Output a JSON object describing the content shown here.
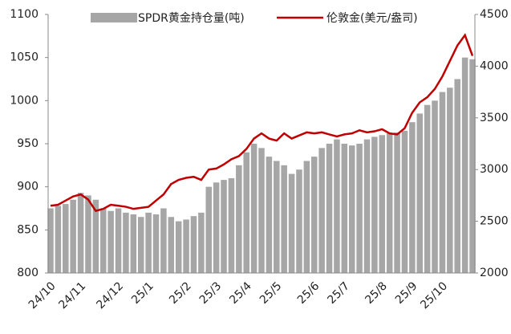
{
  "chart_data": {
    "type": "bar_line",
    "categories": [
      "24/10",
      null,
      null,
      null,
      "24/11",
      null,
      null,
      null,
      null,
      "24/12",
      null,
      null,
      null,
      "25/1",
      null,
      null,
      null,
      null,
      "25/2",
      null,
      null,
      null,
      "25/3",
      null,
      null,
      null,
      "25/4",
      null,
      null,
      null,
      "25/5",
      null,
      null,
      null,
      null,
      "25/6",
      null,
      null,
      null,
      "25/7",
      null,
      null,
      null,
      null,
      "25/8",
      null,
      null,
      null,
      "25/9",
      null,
      null,
      null,
      "25/10",
      null,
      null,
      null,
      null
    ],
    "series": [
      {
        "name": "SPDR黄金持仓量(吨)",
        "color": "#a6a6a6",
        "type": "bar",
        "values": [
          875,
          878,
          880,
          885,
          893,
          890,
          885,
          875,
          872,
          875,
          870,
          868,
          865,
          870,
          868,
          875,
          865,
          860,
          862,
          866,
          870,
          900,
          905,
          908,
          910,
          925,
          940,
          950,
          945,
          935,
          930,
          925,
          915,
          920,
          930,
          935,
          945,
          950,
          955,
          950,
          948,
          950,
          955,
          958,
          960,
          962,
          963,
          965,
          975,
          985,
          995,
          1000,
          1010,
          1015,
          1025,
          1050,
          1048
        ]
      },
      {
        "name": "伦敦金(美元/盎司)",
        "color": "#c00000",
        "type": "line",
        "axis": "y2",
        "values": [
          2650,
          2660,
          2700,
          2740,
          2760,
          2710,
          2600,
          2620,
          2660,
          2650,
          2640,
          2620,
          2630,
          2640,
          2700,
          2760,
          2860,
          2900,
          2920,
          2930,
          2900,
          3000,
          3010,
          3050,
          3100,
          3130,
          3200,
          3300,
          3350,
          3300,
          3280,
          3350,
          3300,
          3330,
          3360,
          3350,
          3360,
          3340,
          3320,
          3340,
          3350,
          3380,
          3360,
          3370,
          3390,
          3350,
          3340,
          3400,
          3550,
          3650,
          3700,
          3780,
          3900,
          4050,
          4200,
          4300,
          4100
        ]
      }
    ],
    "ylim": [
      800,
      1100
    ],
    "yticks": [
      800,
      850,
      900,
      950,
      1000,
      1050,
      1100
    ],
    "y2lim": [
      2000,
      4500
    ],
    "y2ticks": [
      2000,
      2500,
      3000,
      3500,
      4000,
      4500
    ],
    "legend": "top"
  }
}
